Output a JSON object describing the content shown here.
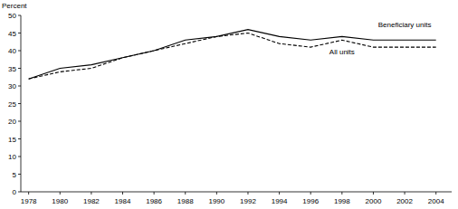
{
  "chart_data": {
    "type": "line",
    "y_label": "Percent",
    "x": [
      1978,
      1980,
      1982,
      1984,
      1986,
      1988,
      1990,
      1992,
      1994,
      1996,
      1998,
      2000,
      2002,
      2004
    ],
    "series": [
      {
        "name": "Beneficiary units",
        "color": "#000000",
        "line_style": "solid",
        "values": [
          32,
          35,
          36,
          38,
          40,
          43,
          44,
          46,
          44,
          43,
          44,
          43,
          43,
          43
        ]
      },
      {
        "name": "All units",
        "color": "#000000",
        "line_style": "dashed",
        "values": [
          32,
          34,
          35,
          38,
          40,
          42,
          44,
          45,
          42,
          41,
          43,
          41,
          41,
          41
        ]
      }
    ],
    "xlim": [
      1977.5,
      2005
    ],
    "xticks": [
      1978,
      1980,
      1982,
      1984,
      1986,
      1988,
      1990,
      1992,
      1994,
      1996,
      1998,
      2000,
      2002,
      2004
    ],
    "ylim": [
      0,
      50
    ],
    "yticks": [
      0,
      5,
      10,
      15,
      20,
      25,
      30,
      35,
      40,
      45,
      50
    ],
    "grid": false
  }
}
